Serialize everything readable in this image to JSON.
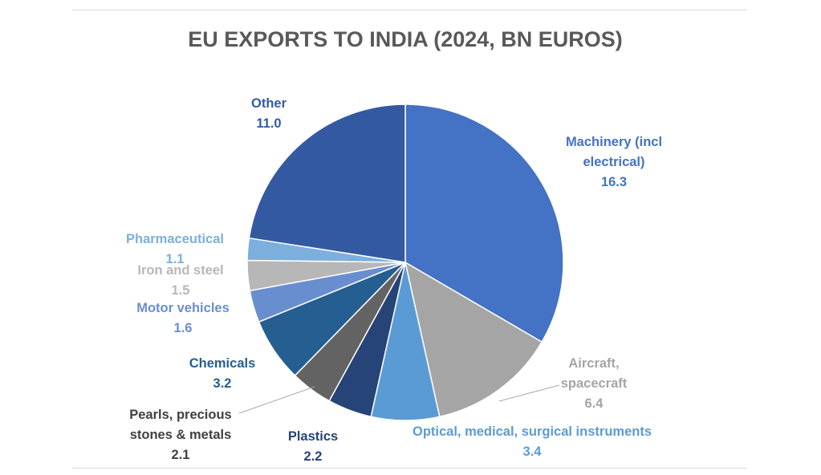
{
  "chart_data": {
    "type": "pie",
    "title": "EU EXPORTS TO INDIA (2024, BN EUROS)",
    "start": "top",
    "direction": "clockwise",
    "slices": [
      {
        "label": "Machinery (incl electrical)",
        "label_lines": [
          "Machinery (incl",
          "electrical)"
        ],
        "value": 16.3,
        "value_text": "16.3",
        "color": "#4472C4"
      },
      {
        "label": "Aircraft, spacecraft",
        "label_lines": [
          "Aircraft,",
          "spacecraft"
        ],
        "value": 6.4,
        "value_text": "6.4",
        "color": "#A5A5A5"
      },
      {
        "label": "Optical, medical, surgical instruments",
        "label_lines": [
          "Optical, medical, surgical instruments"
        ],
        "value": 3.4,
        "value_text": "3.4",
        "color": "#5B9BD5"
      },
      {
        "label": "Plastics",
        "label_lines": [
          "Plastics"
        ],
        "value": 2.2,
        "value_text": "2.2",
        "color": "#264478"
      },
      {
        "label": "Pearls, precious stones & metals",
        "label_lines": [
          "Pearls, precious",
          "stones & metals"
        ],
        "value": 2.1,
        "value_text": "2.1",
        "color": "#636363"
      },
      {
        "label": "Chemicals",
        "label_lines": [
          "Chemicals"
        ],
        "value": 3.2,
        "value_text": "3.2",
        "color": "#255E91"
      },
      {
        "label": "Motor vehicles",
        "label_lines": [
          "Motor vehicles"
        ],
        "value": 1.6,
        "value_text": "1.6",
        "color": "#698ED0"
      },
      {
        "label": "Iron and steel",
        "label_lines": [
          "Iron and steel"
        ],
        "value": 1.5,
        "value_text": "1.5",
        "color": "#B7B7B7"
      },
      {
        "label": "Pharmaceutical",
        "label_lines": [
          "Pharmaceutical"
        ],
        "value": 1.1,
        "value_text": "1.1",
        "color": "#7CAFDD"
      },
      {
        "label": "Other",
        "label_lines": [
          "Other"
        ],
        "value": 11.0,
        "value_text": "11.0",
        "color": "#335AA1"
      }
    ],
    "label_text_colors": [
      "#4472C4",
      "#A5A5A5",
      "#5B9BD5",
      "#264478",
      "#404040",
      "#255E91",
      "#698ED0",
      "#B7B7B7",
      "#7CAFDD",
      "#335AA1"
    ]
  }
}
